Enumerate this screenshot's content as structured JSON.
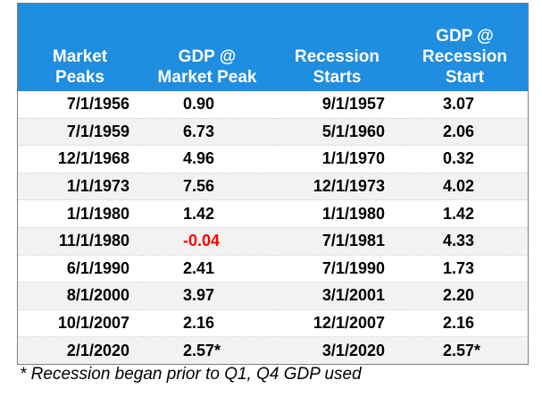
{
  "table": {
    "headers": [
      [
        "Market",
        "Peaks"
      ],
      [
        "GDP @",
        "Market Peak"
      ],
      [
        "Recession",
        "Starts"
      ],
      [
        "GDP @",
        "Recession",
        "Start"
      ]
    ],
    "rows": [
      [
        "7/1/1956",
        "0.90",
        "9/1/1957",
        "3.07"
      ],
      [
        "7/1/1959",
        "6.73",
        "5/1/1960",
        "2.06"
      ],
      [
        "12/1/1968",
        "4.96",
        "1/1/1970",
        "0.32"
      ],
      [
        "1/1/1973",
        "7.56",
        "12/1/1973",
        "4.02"
      ],
      [
        "1/1/1980",
        "1.42",
        "1/1/1980",
        "1.42"
      ],
      [
        "11/1/1980",
        "-0.04",
        "7/1/1981",
        "4.33"
      ],
      [
        "6/1/1990",
        "2.41",
        "7/1/1990",
        "1.73"
      ],
      [
        "8/1/2000",
        "3.97",
        "3/1/2001",
        "2.20"
      ],
      [
        "10/1/2007",
        "2.16",
        "12/1/2007",
        "2.16"
      ],
      [
        "2/1/2020",
        "2.57*",
        "3/1/2020",
        "2.57*"
      ]
    ]
  },
  "footnote": "* Recession began prior to Q1, Q4 GDP used",
  "colors": {
    "header_bg": "#1f8de0",
    "header_text": "#ffffff",
    "negative_value": "#ff0000",
    "stripe": "#f2f2f2"
  }
}
